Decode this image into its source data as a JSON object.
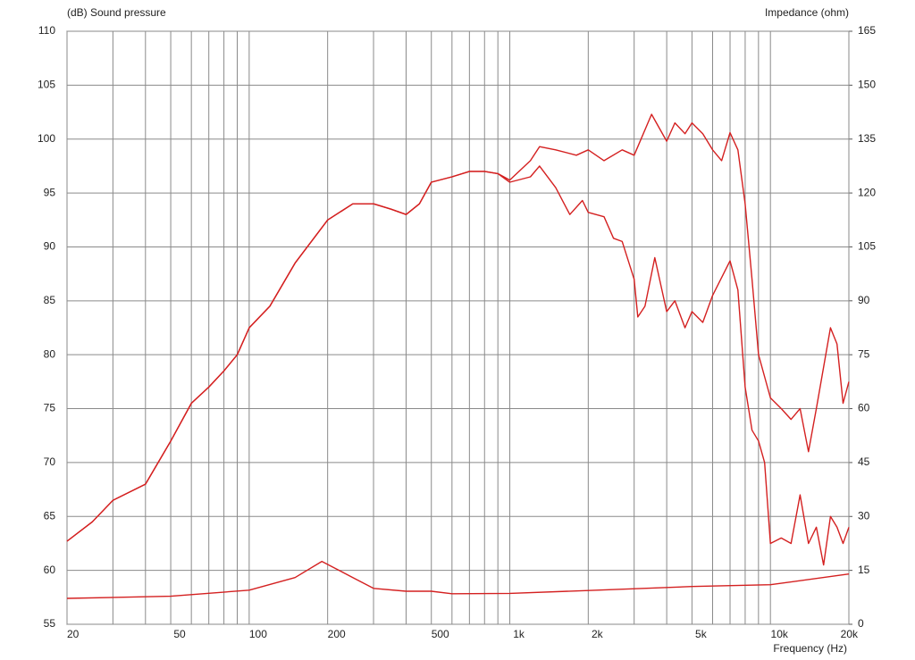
{
  "chart_data": {
    "type": "line",
    "y_label": "(dB)  Sound pressure",
    "y2_label": "Impedance  (ohm)",
    "x_label": "Frequency  (Hz)",
    "xlog": true,
    "xlim": [
      20,
      20000
    ],
    "xticks": [
      20,
      50,
      100,
      200,
      500,
      {
        "value": 1000,
        "label": "1k"
      },
      {
        "value": 2000,
        "label": "2k"
      },
      {
        "value": 5000,
        "label": "5k"
      },
      {
        "value": 10000,
        "label": "10k"
      },
      {
        "value": 20000,
        "label": "20k"
      }
    ],
    "x_minor_ticks": [
      30,
      40,
      60,
      70,
      80,
      90,
      300,
      400,
      600,
      700,
      800,
      900,
      3000,
      4000,
      6000,
      7000,
      8000,
      9000
    ],
    "ylim": [
      55,
      110
    ],
    "yticks": [
      55,
      60,
      65,
      70,
      75,
      80,
      85,
      90,
      95,
      100,
      105,
      110
    ],
    "y2lim": [
      0,
      165
    ],
    "y2ticks": [
      0,
      15,
      30,
      45,
      60,
      75,
      90,
      105,
      120,
      135,
      150,
      165
    ],
    "grid": true,
    "series": [
      {
        "color": "#d42020",
        "x": [
          20,
          25,
          30,
          40,
          50,
          60,
          70,
          80,
          90,
          100,
          120,
          150,
          200,
          250,
          300,
          350,
          400,
          450,
          500,
          600,
          700,
          800,
          900,
          1000,
          1200,
          1300,
          1500,
          1800,
          2000,
          2300,
          2700,
          3000,
          3500,
          4000,
          4300,
          4700,
          5000,
          5500,
          6000,
          6500,
          7000,
          7500,
          8000,
          8500,
          9000,
          10000,
          11000,
          12000,
          13000,
          14000,
          15000,
          17000,
          18000,
          19000,
          20000
        ],
        "values": [
          62.7,
          64.5,
          66.5,
          68,
          72,
          75.5,
          77,
          78.5,
          80,
          82.5,
          84.5,
          88.5,
          92.5,
          94,
          94,
          93.5,
          93,
          94,
          96,
          96.5,
          97,
          97,
          96.8,
          96.2,
          98,
          99.3,
          99,
          98.5,
          99,
          98,
          99,
          98.5,
          102.3,
          99.8,
          101.5,
          100.5,
          101.5,
          100.5,
          99,
          98,
          100.6,
          99,
          94,
          87,
          80,
          76,
          75,
          74,
          75,
          71,
          75,
          82.5,
          81,
          75.5,
          77.5
        ]
      },
      {
        "color": "#d42020",
        "x": [
          20,
          25,
          30,
          40,
          50,
          60,
          70,
          80,
          90,
          100,
          120,
          150,
          200,
          250,
          300,
          350,
          400,
          450,
          500,
          600,
          700,
          800,
          900,
          1000,
          1200,
          1300,
          1500,
          1700,
          1900,
          2000,
          2300,
          2500,
          2700,
          3000,
          3100,
          3300,
          3600,
          4000,
          4300,
          4700,
          5000,
          5500,
          6000,
          7000,
          7500,
          8000,
          8500,
          9000,
          9500,
          10000,
          11000,
          12000,
          13000,
          14000,
          15000,
          16000,
          17000,
          18000,
          19000,
          20000
        ],
        "values": [
          62.7,
          64.5,
          66.5,
          68,
          72,
          75.5,
          77,
          78.5,
          80,
          82.5,
          84.5,
          88.5,
          92.5,
          94,
          94,
          93.5,
          93,
          94,
          96,
          96.5,
          97,
          97,
          96.8,
          96,
          96.5,
          97.5,
          95.5,
          93,
          94.3,
          93.2,
          92.8,
          90.8,
          90.5,
          87,
          83.5,
          84.5,
          89,
          84,
          85,
          82.5,
          84,
          83,
          85.5,
          88.7,
          86,
          77,
          73,
          72,
          70,
          62.5,
          63,
          62.5,
          67,
          62.5,
          64,
          60.5,
          65,
          64,
          62.5,
          64
        ]
      },
      {
        "color": "#d42020",
        "axis": "y2",
        "x": [
          20,
          50,
          100,
          150,
          190,
          250,
          300,
          400,
          500,
          600,
          1000,
          2000,
          5000,
          10000,
          20000
        ],
        "values": [
          7.2,
          7.8,
          9.5,
          13,
          17.5,
          13,
          10,
          9.2,
          9.2,
          8.5,
          8.6,
          9.4,
          10.5,
          11,
          14
        ]
      }
    ]
  }
}
